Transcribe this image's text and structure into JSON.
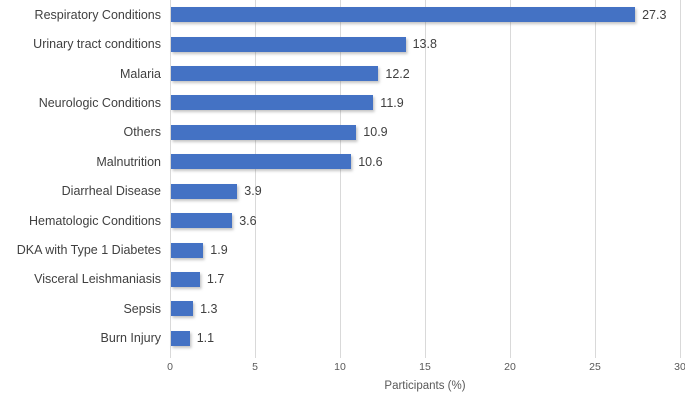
{
  "chart_data": {
    "type": "bar",
    "orientation": "horizontal",
    "xlabel": "Participants (%)",
    "categories": [
      "Respiratory Conditions",
      "Urinary tract conditions",
      "Malaria",
      "Neurologic Conditions",
      "Others",
      "Malnutrition",
      "Diarrheal Disease",
      "Hematologic Conditions",
      "DKA with Type 1 Diabetes",
      "Visceral Leishmaniasis",
      "Sepsis",
      "Burn Injury"
    ],
    "values": [
      27.3,
      13.8,
      12.2,
      11.9,
      10.9,
      10.6,
      3.9,
      3.6,
      1.9,
      1.7,
      1.3,
      1.1
    ],
    "value_labels": [
      "27.3",
      "13.8",
      "12.2",
      "11.9",
      "10.9",
      "10.6",
      "3.9",
      "3.6",
      "1.9",
      "1.7",
      "1.3",
      "1.1"
    ],
    "xlim": [
      0,
      30
    ],
    "xticks": [
      "0",
      "5",
      "10",
      "15",
      "20",
      "25",
      "30"
    ],
    "grid": true,
    "legend": "none",
    "colors": {
      "bar": "#4472C4",
      "gridline": "#D9D9D9",
      "label_text": "#404040",
      "axis_text": "#595959",
      "background": "#FFFFFF"
    }
  }
}
